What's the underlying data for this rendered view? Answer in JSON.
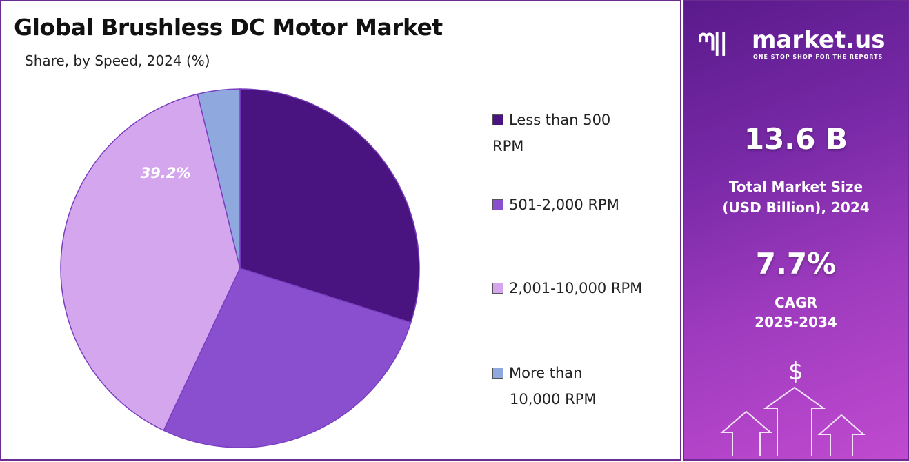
{
  "title": "Global Brushless DC Motor Market",
  "subtitle": "Share, by Speed, 2024 (%)",
  "chart_data": {
    "type": "pie",
    "title": "Global Brushless DC Motor Market",
    "subtitle": "Share, by Speed, 2024 (%)",
    "categories": [
      "Less than 500 RPM",
      "501-2,000 RPM",
      "2,001-10,000 RPM",
      "More than 10,000 RPM"
    ],
    "values": [
      29.9,
      27.1,
      39.2,
      3.8
    ],
    "colors": [
      "#4a1480",
      "#8a4fcf",
      "#d4a6ee",
      "#8fa9df"
    ],
    "data_labels": [
      null,
      null,
      "39.2%",
      null
    ],
    "legend_position": "right"
  },
  "legend": [
    {
      "line1": "Less than 500",
      "line2": "RPM"
    },
    {
      "line1": "501-2,000 RPM",
      "line2": ""
    },
    {
      "line1": "2,001-10,000 RPM",
      "line2": ""
    },
    {
      "line1": "More than",
      "line2": "10,000 RPM"
    }
  ],
  "side": {
    "logo_name": "market.us",
    "logo_tagline": "ONE STOP SHOP FOR THE REPORTS",
    "market_size": "13.6 B",
    "market_label_1": "Total Market Size",
    "market_label_2": "(USD Billion), 2024",
    "cagr": "7.7%",
    "cagr_label_1": "CAGR",
    "cagr_label_2": "2025-2034",
    "dollar": "$"
  }
}
